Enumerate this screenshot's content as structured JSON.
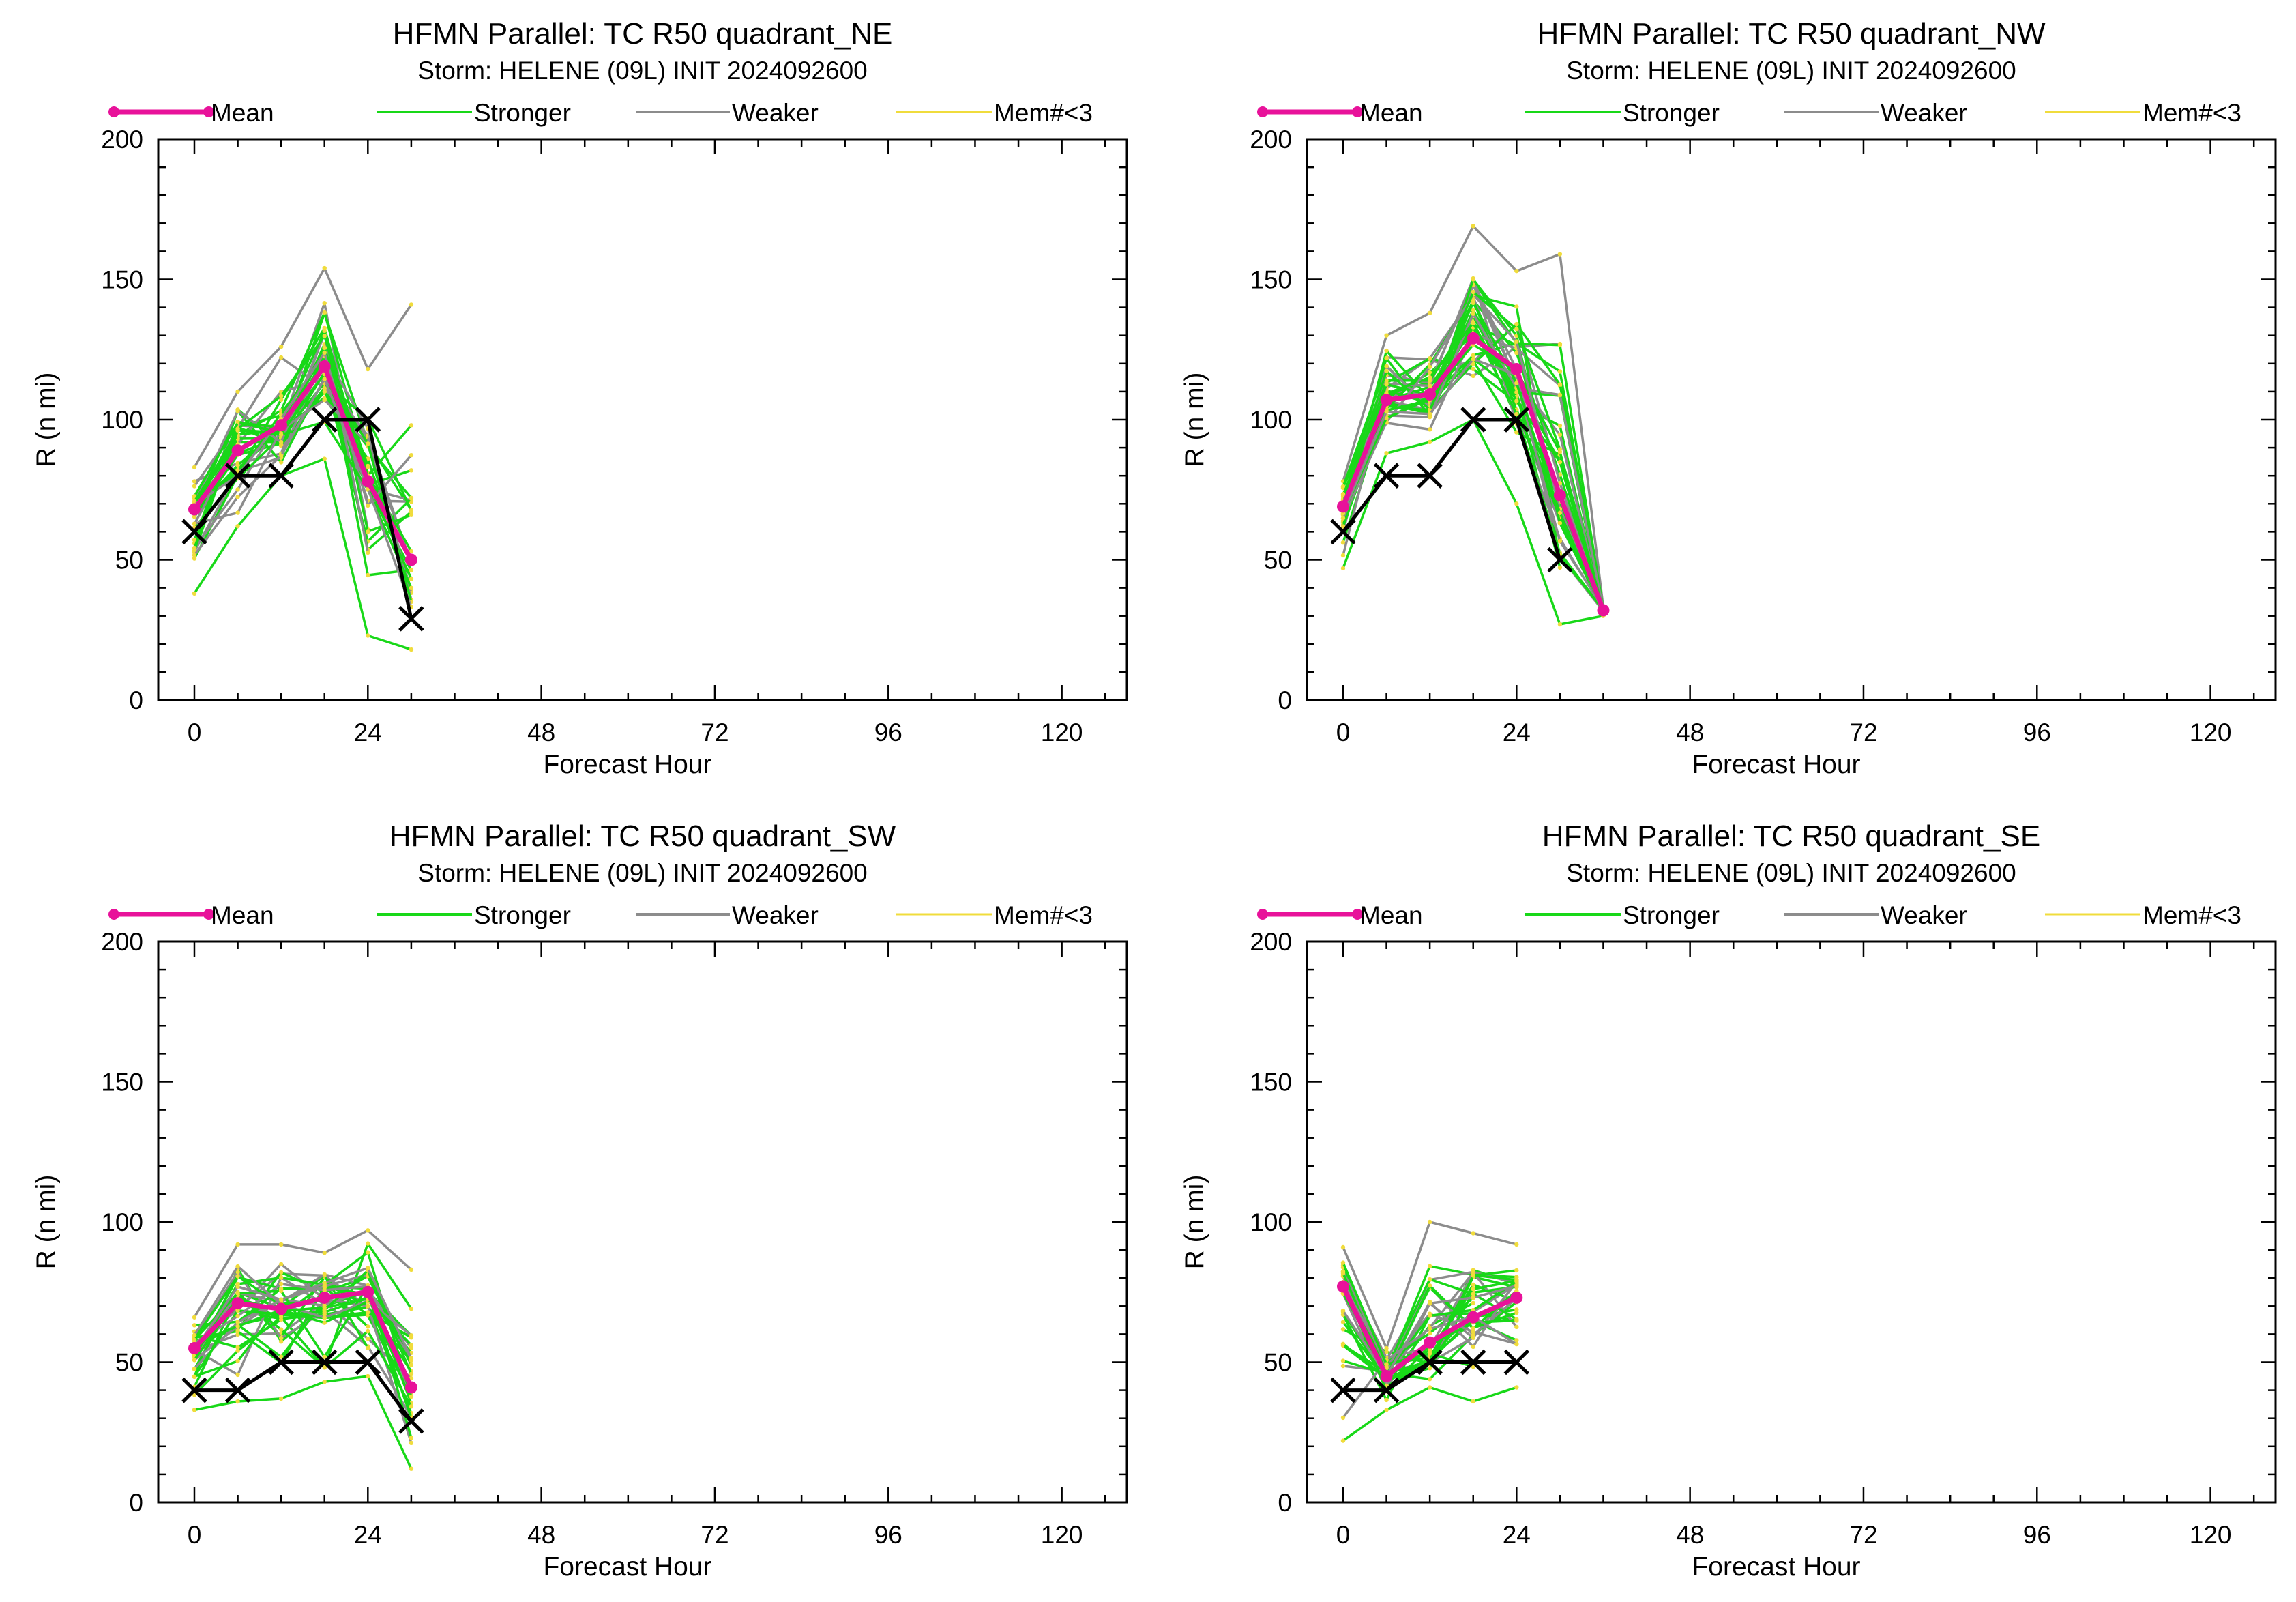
{
  "colors": {
    "mean": "#e8129a",
    "stronger": "#18d818",
    "weaker": "#8c8c8c",
    "members_lt3": "#f0dc3c",
    "best_track": "#000000"
  },
  "legend": [
    "Mean",
    "Stronger",
    "Weaker",
    "Mem#<3"
  ],
  "chart_data": [
    {
      "type": "line",
      "title": "HFMN Parallel: TC  R50 quadrant_NE",
      "subtitle": "Storm: HELENE (09L) INIT 2024092600",
      "xlabel": "Forecast Hour",
      "ylabel": "R (n mi)",
      "xlim": [
        -5,
        129
      ],
      "ylim": [
        0,
        200
      ],
      "xticks": [
        0,
        24,
        48,
        72,
        96,
        120
      ],
      "yticks": [
        0,
        50,
        100,
        150,
        200
      ],
      "grid": false,
      "legend_position": "top",
      "series": [
        {
          "name": "Mean",
          "x": [
            0,
            6,
            12,
            18,
            24,
            30
          ],
          "values": [
            68,
            89,
            98,
            119,
            78,
            50
          ]
        },
        {
          "x": [
            0,
            6,
            12,
            18,
            24,
            30
          ],
          "values": [
            60,
            80,
            80,
            100,
            100,
            29
          ]
        }
      ],
      "member_envelope": {
        "x": [
          0,
          6,
          12,
          18,
          24,
          30
        ],
        "low": [
          38,
          62,
          80,
          86,
          23,
          18
        ],
        "high": [
          83,
          110,
          126,
          154,
          118,
          141
        ]
      }
    },
    {
      "type": "line",
      "title": "HFMN Parallel: TC  R50 quadrant_NW",
      "subtitle": "Storm: HELENE (09L) INIT 2024092600",
      "xlabel": "Forecast Hour",
      "ylabel": "R (n mi)",
      "xlim": [
        -5,
        129
      ],
      "ylim": [
        0,
        200
      ],
      "xticks": [
        0,
        24,
        48,
        72,
        96,
        120
      ],
      "yticks": [
        0,
        50,
        100,
        150,
        200
      ],
      "grid": false,
      "legend_position": "top",
      "series": [
        {
          "name": "Mean",
          "x": [
            0,
            6,
            12,
            18,
            24,
            30,
            36
          ],
          "values": [
            69,
            107,
            109,
            129,
            118,
            73,
            32
          ]
        },
        {
          "x": [
            0,
            6,
            12,
            18,
            24,
            30
          ],
          "values": [
            60,
            80,
            80,
            100,
            100,
            50
          ]
        }
      ],
      "member_envelope": {
        "x": [
          0,
          6,
          12,
          18,
          24,
          30,
          36
        ],
        "low": [
          47,
          88,
          92,
          100,
          70,
          27,
          30
        ],
        "high": [
          78,
          130,
          138,
          169,
          153,
          159,
          33
        ]
      }
    },
    {
      "type": "line",
      "title": "HFMN Parallel: TC  R50 quadrant_SW",
      "subtitle": "Storm: HELENE (09L) INIT 2024092600",
      "xlabel": "Forecast Hour",
      "ylabel": "R (n mi)",
      "xlim": [
        -5,
        129
      ],
      "ylim": [
        0,
        200
      ],
      "xticks": [
        0,
        24,
        48,
        72,
        96,
        120
      ],
      "yticks": [
        0,
        50,
        100,
        150,
        200
      ],
      "grid": false,
      "legend_position": "top",
      "series": [
        {
          "name": "Mean",
          "x": [
            0,
            6,
            12,
            18,
            24,
            30
          ],
          "values": [
            55,
            71,
            69,
            73,
            75,
            41
          ]
        },
        {
          "x": [
            0,
            6,
            12,
            18,
            24,
            30
          ],
          "values": [
            40,
            40,
            50,
            50,
            50,
            29
          ]
        }
      ],
      "member_envelope": {
        "x": [
          0,
          6,
          12,
          18,
          24,
          30
        ],
        "low": [
          33,
          36,
          37,
          43,
          45,
          12
        ],
        "high": [
          66,
          92,
          92,
          89,
          97,
          83
        ]
      }
    },
    {
      "type": "line",
      "title": "HFMN Parallel: TC  R50 quadrant_SE",
      "subtitle": "Storm: HELENE (09L) INIT 2024092600",
      "xlabel": "Forecast Hour",
      "ylabel": "R (n mi)",
      "xlim": [
        -5,
        129
      ],
      "ylim": [
        0,
        200
      ],
      "xticks": [
        0,
        24,
        48,
        72,
        96,
        120
      ],
      "yticks": [
        0,
        50,
        100,
        150,
        200
      ],
      "grid": false,
      "legend_position": "top",
      "series": [
        {
          "name": "Mean",
          "x": [
            0,
            6,
            12,
            18,
            24
          ],
          "values": [
            77,
            45,
            57,
            66,
            73
          ]
        },
        {
          "x": [
            0,
            6,
            12,
            18,
            24
          ],
          "values": [
            40,
            40,
            50,
            50,
            50
          ]
        }
      ],
      "member_envelope": {
        "x": [
          0,
          6,
          12,
          18,
          24
        ],
        "low": [
          22,
          33,
          41,
          36,
          41
        ],
        "high": [
          91,
          55,
          100,
          96,
          92
        ]
      }
    }
  ]
}
